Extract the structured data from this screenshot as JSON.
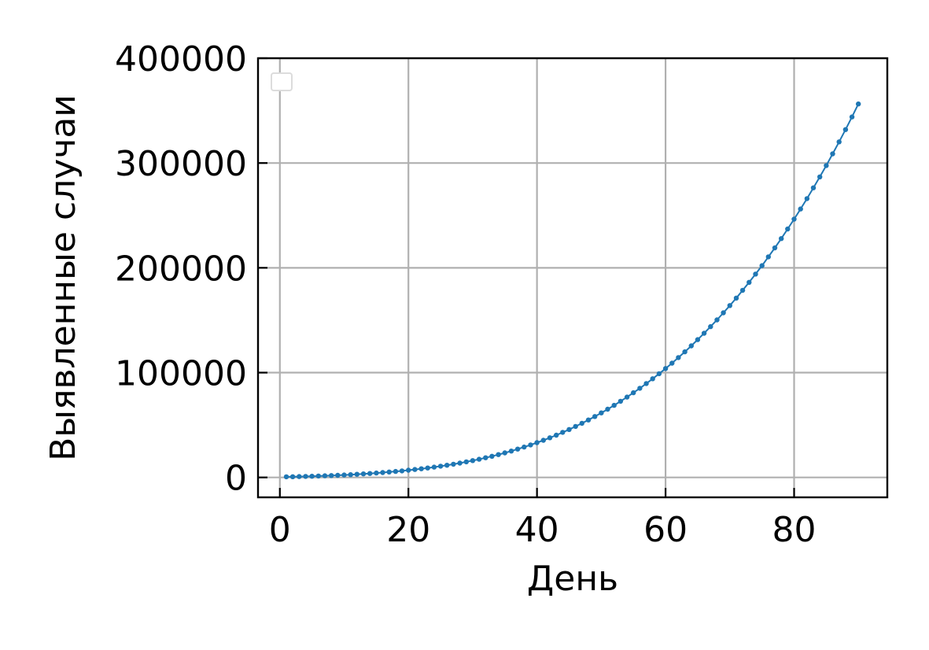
{
  "chart_data": {
    "type": "line",
    "xlabel": "День",
    "ylabel": "Выявленные случаи",
    "xlim": [
      -3.4,
      94.5
    ],
    "ylim": [
      -19000,
      400000
    ],
    "xticks": [
      0,
      20,
      40,
      60,
      80
    ],
    "yticks": [
      0,
      100000,
      200000,
      300000,
      400000
    ],
    "grid": true,
    "legend": "top-left, empty",
    "series_color": "#1f77b4",
    "series": [
      {
        "x": [
          1,
          2,
          3,
          4,
          5,
          6,
          7,
          8,
          9,
          10,
          11,
          12,
          13,
          14,
          15,
          16,
          17,
          18,
          19,
          20,
          21,
          22,
          23,
          24,
          25,
          26,
          27,
          28,
          29,
          30,
          31,
          32,
          33,
          34,
          35,
          36,
          37,
          38,
          39,
          40,
          41,
          42,
          43,
          44,
          45,
          46,
          47,
          48,
          49,
          50,
          51,
          52,
          53,
          54,
          55,
          56,
          57,
          58,
          59,
          60,
          61,
          62,
          63,
          64,
          65,
          66,
          67,
          68,
          69,
          70,
          71,
          72,
          73,
          74,
          75,
          76,
          77,
          78,
          79,
          80,
          81,
          82,
          83,
          84,
          85,
          86,
          87,
          88,
          89,
          90
        ],
        "y": [
          600,
          700,
          850,
          1000,
          1150,
          1350,
          1550,
          1800,
          2050,
          2350,
          2650,
          3000,
          3350,
          3750,
          4200,
          4650,
          5150,
          5700,
          6250,
          6900,
          7550,
          8250,
          9000,
          9850,
          10700,
          11650,
          12650,
          13700,
          14850,
          16050,
          17350,
          18750,
          20200,
          21750,
          23400,
          25150,
          27000,
          28950,
          31000,
          33200,
          35450,
          37850,
          40350,
          43000,
          45750,
          48650,
          51650,
          54800,
          58100,
          61550,
          65100,
          68800,
          72650,
          76650,
          80800,
          85100,
          89550,
          94150,
          98950,
          103900,
          109000,
          114350,
          119850,
          125550,
          131450,
          137550,
          143850,
          150350,
          157050,
          164000,
          171150,
          178550,
          186150,
          194000,
          202100,
          210450,
          219050,
          227900,
          237050,
          246450,
          256100,
          266050,
          276300,
          286800,
          297600,
          308750,
          320150,
          331900,
          343950,
          356350
        ]
      }
    ]
  }
}
